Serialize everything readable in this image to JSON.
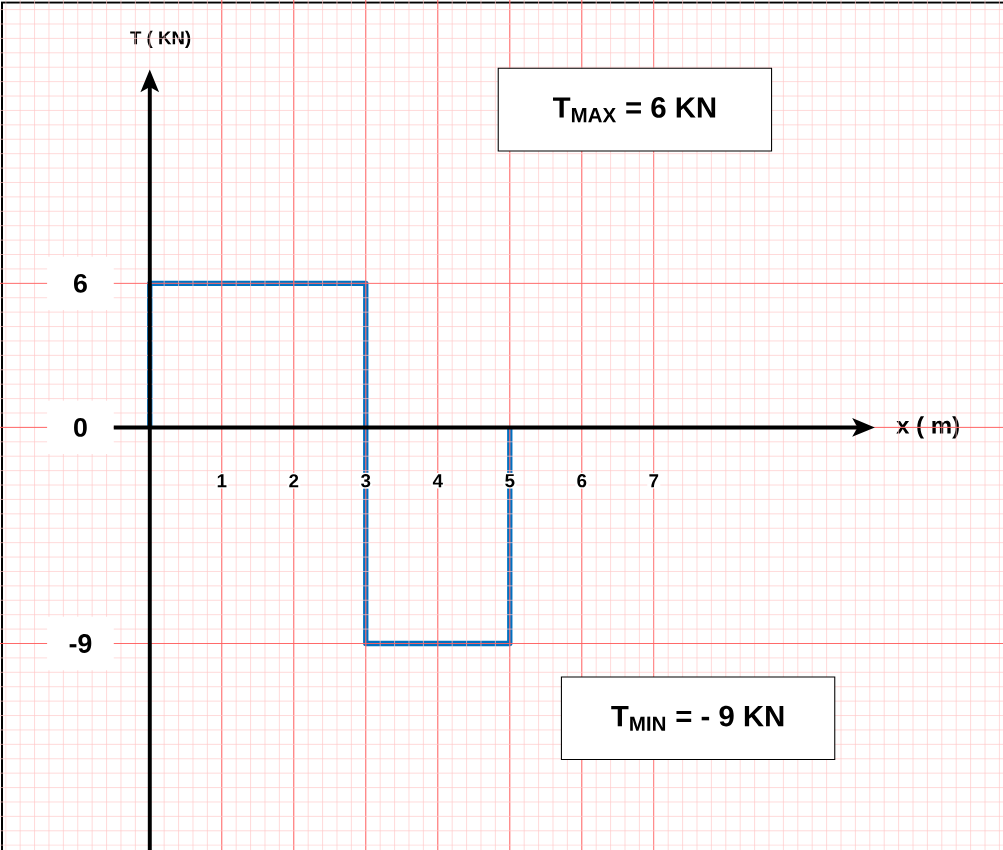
{
  "chart_data": {
    "type": "line",
    "xlabel": "x ( m)",
    "ylabel": "T ( KN)",
    "x": [
      0,
      0,
      3,
      3,
      5,
      5
    ],
    "series": [
      {
        "color": "#0070c0",
        "values": [
          0,
          6,
          6,
          -9,
          -9,
          0
        ]
      }
    ],
    "xlim": [
      -2.08,
      11.85
    ],
    "ylim": [
      -17.6,
      17.8
    ],
    "xticks": [
      1,
      2,
      3,
      4,
      5,
      6,
      7
    ],
    "yticks": [
      6,
      0,
      -9
    ],
    "grid": true,
    "line_style": "solid",
    "marker": "none",
    "annotations": [
      "T$_{MAX}$ = 6  KN",
      "T$_{MIN}$ = - 9  KN"
    ]
  }
}
